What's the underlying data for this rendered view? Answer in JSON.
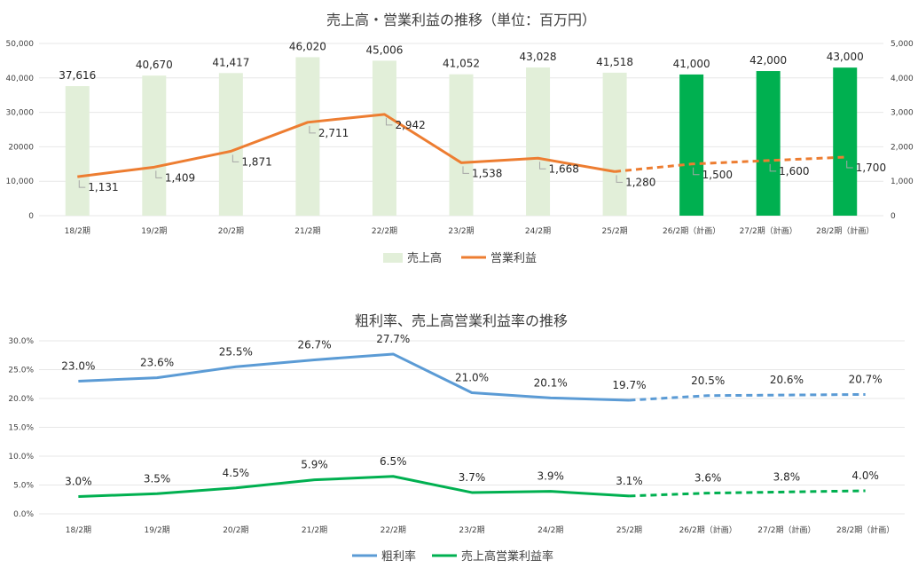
{
  "chart_data": [
    {
      "type": "bar",
      "title": "売上高・営業利益の推移（単位：百万円）",
      "categories": [
        "18/2期",
        "19/2期",
        "20/2期",
        "21/2期",
        "22/2期",
        "23/2期",
        "24/2期",
        "25/2期",
        "26/2期（計画）",
        "27/2期（計画）",
        "28/2期（計画）"
      ],
      "y_left_ticks": [
        "50,000",
        "40,000",
        "30,000",
        "20000",
        "10,000",
        "0"
      ],
      "y_right_ticks": [
        "5,000",
        "4,000",
        "3,000",
        "2,000",
        "1,000",
        "0"
      ],
      "ylim_left": [
        0,
        50000
      ],
      "ylim_right": [
        0,
        5000
      ],
      "legend_position": "bottom",
      "series": [
        {
          "name": "売上高",
          "kind": "bar",
          "axis": "left",
          "values": [
            37616,
            40670,
            41417,
            46020,
            45006,
            41052,
            43028,
            41518,
            41000,
            42000,
            43000
          ],
          "labels": [
            "37,616",
            "40,670",
            "41,417",
            "46,020",
            "45,006",
            "41,052",
            "43,028",
            "41,518",
            "41,000",
            "42,000",
            "43,000"
          ],
          "color_actual": "#e2efd9",
          "color_plan": "#00b050",
          "plan_start_index": 8
        },
        {
          "name": "営業利益",
          "kind": "line",
          "axis": "right",
          "values": [
            1131,
            1409,
            1871,
            2711,
            2942,
            1538,
            1668,
            1280,
            1500,
            1600,
            1700
          ],
          "labels": [
            "1,131",
            "1,409",
            "1,871",
            "2,711",
            "2,942",
            "1,538",
            "1,668",
            "1,280",
            "1,500",
            "1,600",
            "1,700"
          ],
          "color": "#ed7d31",
          "dashed_from_index": 7
        }
      ]
    },
    {
      "type": "line",
      "title": "粗利率、売上高営業利益率の推移",
      "categories": [
        "18/2期",
        "19/2期",
        "20/2期",
        "21/2期",
        "22/2期",
        "23/2期",
        "24/2期",
        "25/2期",
        "26/2期（計画）",
        "27/2期（計画）",
        "28/2期（計画）"
      ],
      "y_ticks": [
        "30.0%",
        "25.0%",
        "20.0%",
        "15.0%",
        "10.0%",
        "5.0%",
        "0.0%"
      ],
      "ylim": [
        0,
        30
      ],
      "legend_position": "bottom",
      "series": [
        {
          "name": "粗利率",
          "values": [
            23.0,
            23.6,
            25.5,
            26.7,
            27.7,
            21.0,
            20.1,
            19.7,
            20.5,
            20.6,
            20.7
          ],
          "labels": [
            "23.0%",
            "23.6%",
            "25.5%",
            "26.7%",
            "27.7%",
            "21.0%",
            "20.1%",
            "19.7%",
            "20.5%",
            "20.6%",
            "20.7%"
          ],
          "color": "#5b9bd5",
          "dashed_from_index": 7
        },
        {
          "name": "売上高営業利益率",
          "values": [
            3.0,
            3.5,
            4.5,
            5.9,
            6.5,
            3.7,
            3.9,
            3.1,
            3.6,
            3.8,
            4.0
          ],
          "labels": [
            "3.0%",
            "3.5%",
            "4.5%",
            "5.9%",
            "6.5%",
            "3.7%",
            "3.9%",
            "3.1%",
            "3.6%",
            "3.8%",
            "4.0%"
          ],
          "color": "#00b050",
          "dashed_from_index": 7
        }
      ]
    }
  ]
}
